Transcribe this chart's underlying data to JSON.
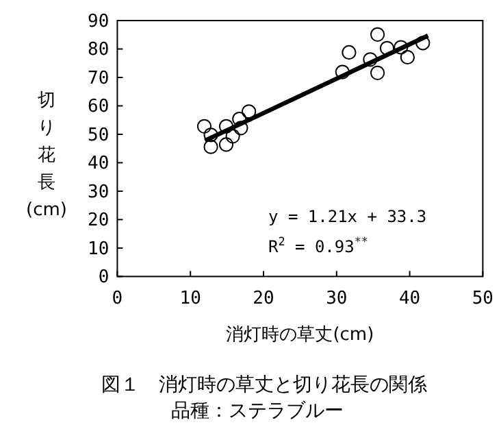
{
  "chart_data": {
    "type": "scatter",
    "title": "図１　消灯時の草丈と切り花長の関係",
    "subtitle": "品種：ステラブルー",
    "xlabel": "消灯時の草丈(cm)",
    "ylabel": "切り花長(cm)",
    "xlim": [
      0,
      50
    ],
    "xticks": [
      0,
      10,
      20,
      30,
      40,
      50
    ],
    "ylim": [
      0,
      90
    ],
    "yticks": [
      0,
      10,
      20,
      30,
      40,
      50,
      60,
      70,
      80,
      90
    ],
    "grid": false,
    "marker": "circle",
    "series": [
      {
        "color": "#000000",
        "x": [
          11.9,
          12.8,
          12.8,
          14.9,
          14.9,
          15.8,
          16.7,
          16.9,
          18.0,
          30.8,
          31.7,
          34.6,
          35.6,
          35.6,
          36.9,
          38.8,
          39.7,
          41.8
        ],
        "values": [
          52.8,
          49.8,
          45.6,
          52.8,
          46.4,
          49.3,
          55.4,
          52.2,
          58.0,
          71.9,
          78.8,
          76.3,
          85.1,
          71.6,
          80.3,
          80.6,
          77.1,
          82.1
        ]
      },
      {
        "type": "line",
        "color": "#000000",
        "marker": "none",
        "x": [
          12,
          42.5
        ],
        "values": [
          47.8,
          84.7
        ]
      }
    ],
    "annotations": [
      "y = 1.21x + 33.3",
      "R$^{2}$ = 0.93$^{**}$"
    ]
  }
}
